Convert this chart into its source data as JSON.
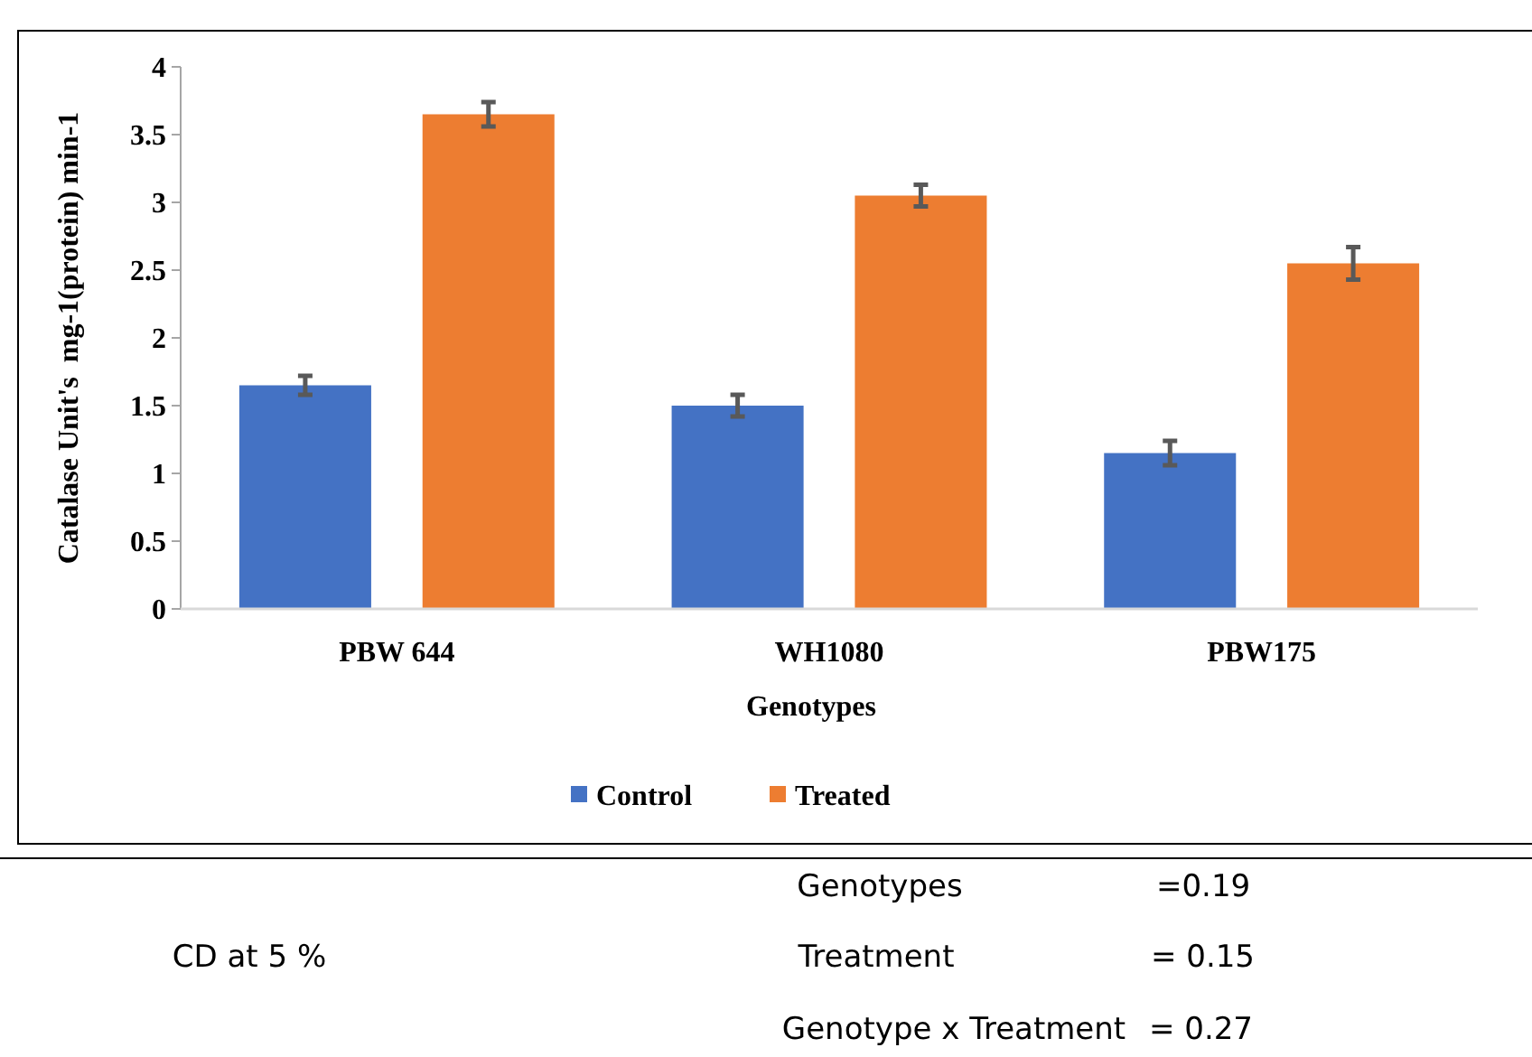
{
  "chart_data": {
    "type": "bar",
    "xlabel": "Genotypes",
    "ylabel": "Catalase Unit's  mg-1(protein) min-1",
    "categories": [
      "PBW 644",
      "WH1080",
      "PBW175"
    ],
    "series": [
      {
        "name": "Control",
        "color": "#4472c4",
        "values": [
          1.65,
          1.5,
          1.15
        ],
        "errors": [
          0.07,
          0.08,
          0.09
        ]
      },
      {
        "name": "Treated",
        "color": "#ed7d31",
        "values": [
          3.65,
          3.05,
          2.55
        ],
        "errors": [
          0.09,
          0.08,
          0.12
        ]
      }
    ],
    "ylim": [
      0,
      4
    ],
    "yticks": [
      0,
      0.5,
      1,
      1.5,
      2,
      2.5,
      3,
      3.5,
      4
    ],
    "grid": false,
    "legend": "bottom",
    "annotations": [
      "CD at 5 %",
      "Genotypes",
      "=0.19",
      "Treatment",
      "= 0.15",
      "Genotype x Treatment",
      "= 0.27"
    ]
  }
}
